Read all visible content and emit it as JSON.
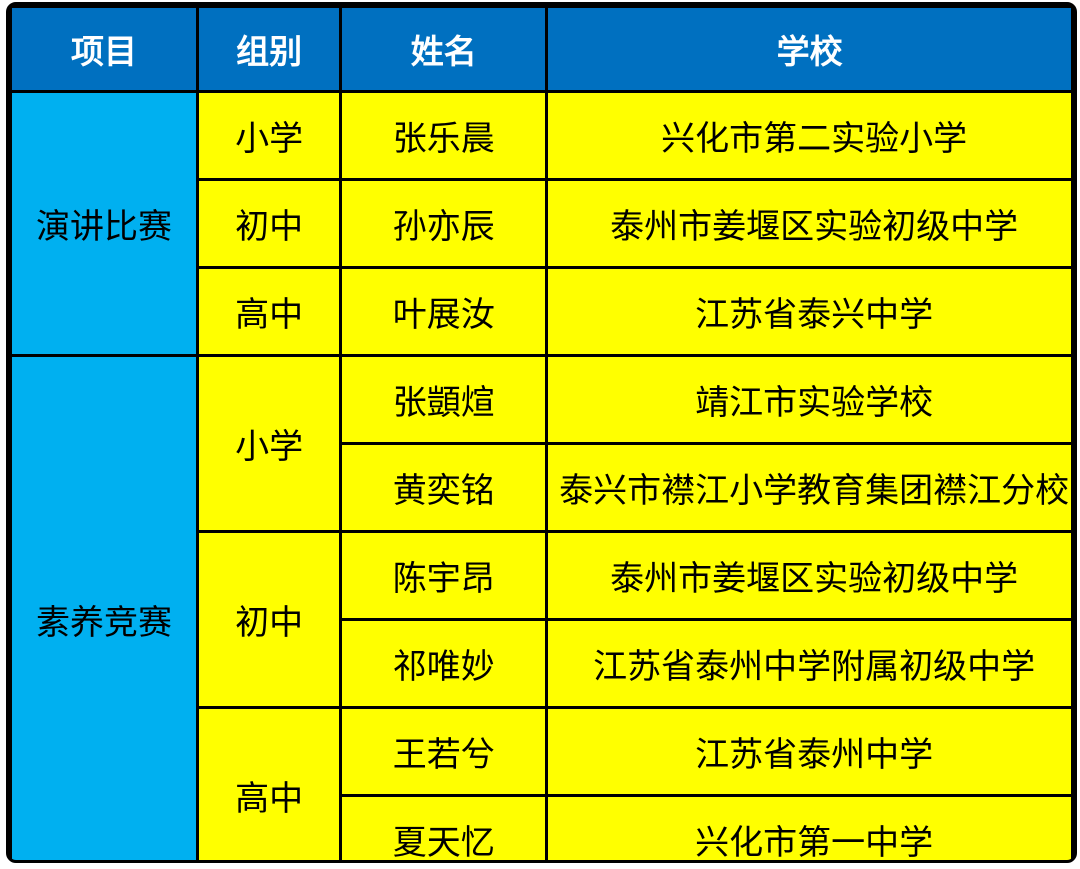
{
  "table": {
    "headers": [
      "项目",
      "组别",
      "姓名",
      "学校"
    ],
    "colors": {
      "header_bg": "#0070C0",
      "header_text": "#FFFFFF",
      "project_bg": "#00B0F0",
      "cell_bg": "#FFFF00",
      "border": "#000000",
      "page_bg": "#FFFFFF"
    },
    "sections": [
      {
        "project": "演讲比赛",
        "groups": [
          {
            "group": "小学",
            "entries": [
              {
                "name": "张乐晨",
                "school": "兴化市第二实验小学"
              }
            ]
          },
          {
            "group": "初中",
            "entries": [
              {
                "name": "孙亦辰",
                "school": "泰州市姜堰区实验初级中学"
              }
            ]
          },
          {
            "group": "高中",
            "entries": [
              {
                "name": "叶展汝",
                "school": "江苏省泰兴中学"
              }
            ]
          }
        ]
      },
      {
        "project": "素养竞赛",
        "groups": [
          {
            "group": "小学",
            "entries": [
              {
                "name": "张顗煊",
                "school": "靖江市实验学校"
              },
              {
                "name": "黄奕铭",
                "school": "泰兴市襟江小学教育集团襟江分校"
              }
            ]
          },
          {
            "group": "初中",
            "entries": [
              {
                "name": "陈宇昂",
                "school": "泰州市姜堰区实验初级中学"
              },
              {
                "name": "祁唯妙",
                "school": "江苏省泰州中学附属初级中学"
              }
            ]
          },
          {
            "group": "高中",
            "entries": [
              {
                "name": "王若兮",
                "school": "江苏省泰州中学"
              },
              {
                "name": "夏天忆",
                "school": "兴化市第一中学"
              }
            ]
          }
        ]
      }
    ]
  }
}
